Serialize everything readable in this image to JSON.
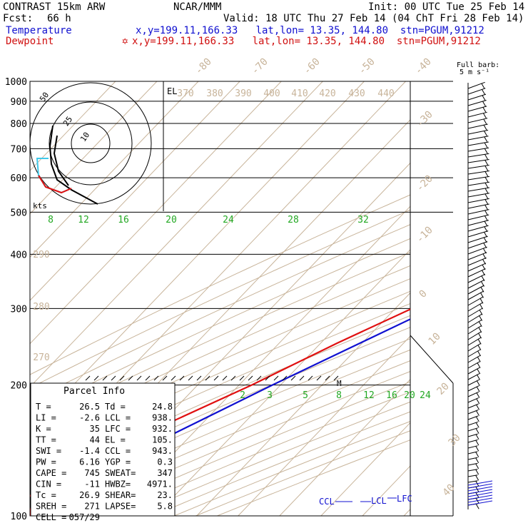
{
  "header": {
    "model": "CONTRAST 15km ARW",
    "center": "NCAR/MMM",
    "init": "Init: 00 UTC Tue 25 Feb 14",
    "fcst_label": "Fcst:",
    "fcst_value": "66 h",
    "valid": "Valid: 18 UTC Thu 27 Feb 14 (04 ChT Fri 28 Feb 14)",
    "temperature_label": "Temperature",
    "temperature_info": "x,y=199.11,166.33   lat,lon= 13.35, 144.80  stn=PGUM,91212",
    "dewpoint_label": "Dewpoint",
    "dewpoint_info": "x,y=199.11,166.33   lat,lon= 13.35, 144.80  stn=PGUM,91212",
    "dewpoint_marker": "✡",
    "barb_label_1": "Full barb:",
    "barb_label_2": "5 m s⁻¹"
  },
  "colors": {
    "temperature": "#1010d0",
    "dewpoint": "#e01010",
    "isotherm": "#c8b49a",
    "mixing_ratio": "#22a822",
    "isobar": "#000000",
    "hodo_low": "#40c8e8"
  },
  "chart_data": {
    "type": "line",
    "title": "Skew-T log-P sounding",
    "y_axis": {
      "scale": "log-pressure",
      "unit": "hPa",
      "ylim": [
        1000,
        100
      ],
      "ticks": [
        100,
        200,
        300,
        400,
        500,
        600,
        700,
        800,
        900,
        1000
      ]
    },
    "isotherm_labels": [
      "-80",
      "-70",
      "-60",
      "-50",
      "-40",
      "-30",
      "-20",
      "-10",
      "0",
      "10",
      "20",
      "30",
      "40"
    ],
    "theta_labels": [
      "370",
      "380",
      "390",
      "400",
      "410",
      "420",
      "430",
      "440",
      "290",
      "280",
      "270"
    ],
    "mixing_ratio_labels_upper": [
      "8",
      "12",
      "16",
      "20",
      "24",
      "28",
      "32"
    ],
    "mixing_ratio_labels_lower": [
      "2",
      "3",
      "5",
      "8",
      "12",
      "16",
      "20",
      "24"
    ],
    "series": [
      {
        "name": "Temperature",
        "points": [
          [
            1000,
            26.5
          ],
          [
            975,
            24.8
          ],
          [
            950,
            22.8
          ],
          [
            925,
            21.6
          ],
          [
            900,
            20.2
          ],
          [
            850,
            18.2
          ],
          [
            800,
            15.0
          ],
          [
            700,
            9.5
          ],
          [
            600,
            4.5
          ],
          [
            500,
            -5.5
          ],
          [
            400,
            -16.0
          ],
          [
            300,
            -31.0
          ],
          [
            250,
            -40.5
          ],
          [
            200,
            -52.0
          ],
          [
            150,
            -66.0
          ],
          [
            125,
            -74.0
          ],
          [
            105,
            -80.0
          ],
          [
            100,
            -78.5
          ]
        ]
      },
      {
        "name": "Dewpoint",
        "points": [
          [
            1000,
            24.8
          ],
          [
            975,
            24.0
          ],
          [
            950,
            23.0
          ],
          [
            925,
            21.8
          ],
          [
            900,
            20.5
          ],
          [
            850,
            16.5
          ],
          [
            800,
            11.0
          ],
          [
            700,
            0.0
          ],
          [
            650,
            -8.0
          ],
          [
            600,
            -15.0
          ],
          [
            550,
            -21.0
          ],
          [
            500,
            -22.0
          ],
          [
            450,
            -19.0
          ],
          [
            400,
            -22.0
          ],
          [
            350,
            -29.0
          ],
          [
            300,
            -36.0
          ],
          [
            250,
            -46.0
          ],
          [
            200,
            -57.0
          ],
          [
            150,
            -73.0
          ],
          [
            125,
            -83.0
          ],
          [
            110,
            -85.0
          ],
          [
            100,
            -80.0
          ]
        ]
      }
    ],
    "markers": {
      "el_label": "EL",
      "m_label": "M",
      "ccl_label": "CCL",
      "lcl_label": "LCL",
      "lfc_label": "LFC"
    },
    "hodograph": {
      "unit_label": "kts",
      "ring_labels": [
        "50",
        "25",
        "10"
      ]
    },
    "wind_barbs_unit": "m s-1"
  },
  "parcel_info": {
    "title": "Parcel Info",
    "rows": [
      {
        "l1": "T   =",
        "v1": "26.5",
        "l2": "Td =",
        "v2": "24.8"
      },
      {
        "l1": "LI  =",
        "v1": "-2.6",
        "l2": "LCL =",
        "v2": "938."
      },
      {
        "l1": "K   =",
        "v1": "35",
        "l2": "LFC =",
        "v2": "932."
      },
      {
        "l1": "TT  =",
        "v1": "44",
        "l2": "EL  =",
        "v2": "105."
      },
      {
        "l1": "SWI =",
        "v1": "-1.4",
        "l2": "CCL =",
        "v2": "943."
      },
      {
        "l1": "PW  =",
        "v1": "6.16",
        "l2": "YGP =",
        "v2": "0.3"
      },
      {
        "l1": "CAPE =",
        "v1": "745",
        "l2": "SWEAT=",
        "v2": "347"
      },
      {
        "l1": "CIN  =",
        "v1": "-11",
        "l2": "HWBZ=",
        "v2": "4971."
      },
      {
        "l1": "Tc   =",
        "v1": "26.9",
        "l2": "SHEAR=",
        "v2": "23."
      },
      {
        "l1": "SREH =",
        "v1": "271",
        "l2": "LAPSE=",
        "v2": "5.8"
      },
      {
        "l1": "CELL =",
        "v1": "057/29",
        "l2": "",
        "v2": ""
      }
    ]
  }
}
